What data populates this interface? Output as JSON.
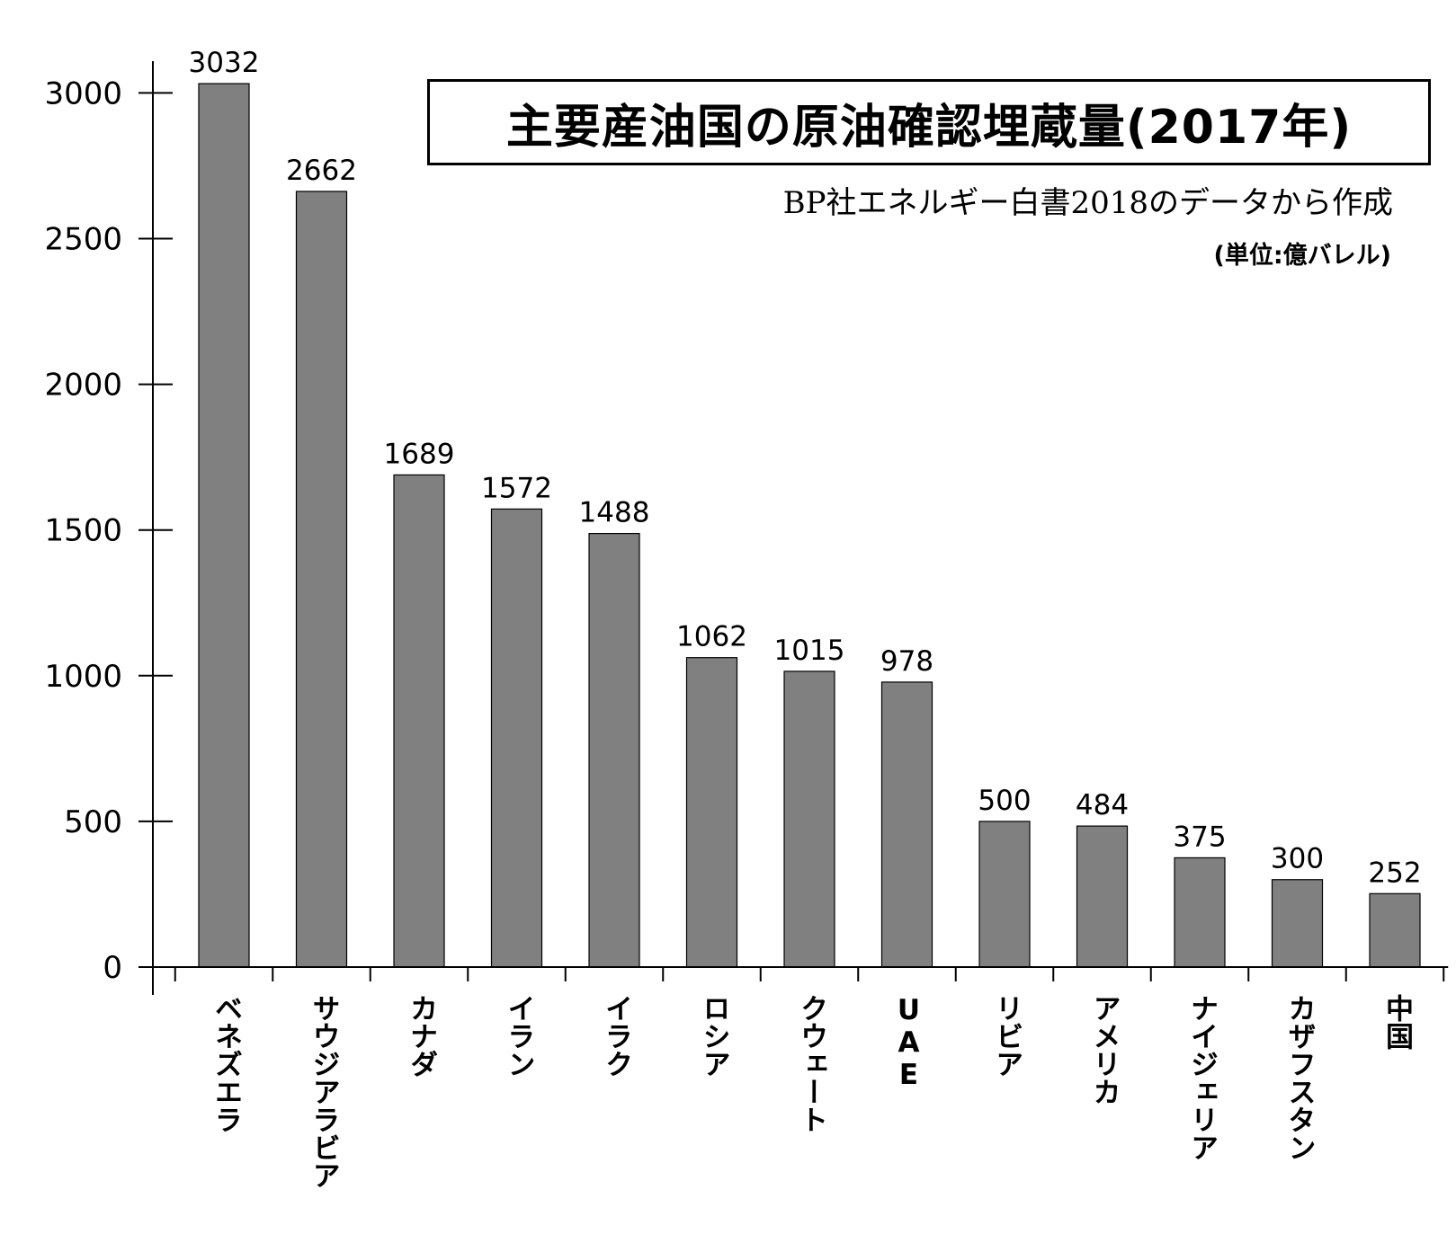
{
  "chart_data": {
    "type": "bar",
    "title": "主要産油国の原油確認埋蔵量(2017年)",
    "subtitle": "BP社エネルギー白書2018のデータから作成",
    "unit": "(単位:億バレル)",
    "categories": [
      "ベネズエラ",
      "サウジアラビア",
      "カナダ",
      "イラン",
      "イラク",
      "ロシア",
      "クウェート",
      "UAE",
      "リビア",
      "アメリカ",
      "ナイジェリア",
      "カザフスタン",
      "中国"
    ],
    "values": [
      3032,
      2662,
      1689,
      1572,
      1488,
      1062,
      1015,
      978,
      500,
      484,
      375,
      300,
      252
    ],
    "value_labels": [
      "3032",
      "2662",
      "1689",
      "1572",
      "1488",
      "1062",
      "1015",
      "978",
      "500",
      "484",
      "375",
      "300",
      "252"
    ],
    "yticks": [
      "0",
      "500",
      "1000",
      "1500",
      "2000",
      "2500",
      "3000"
    ],
    "ylim": [
      0,
      3200
    ],
    "xlabel": "",
    "ylabel": "",
    "bar_color": "#808080",
    "grid": false
  }
}
